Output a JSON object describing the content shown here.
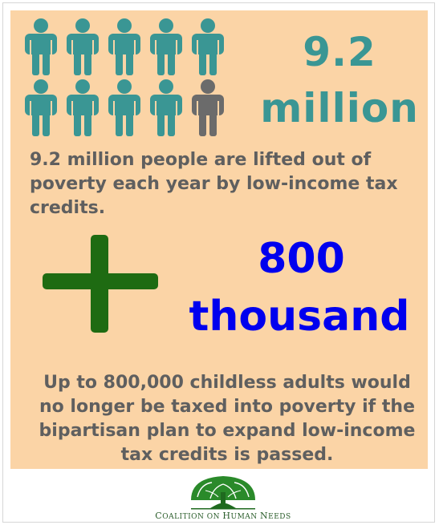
{
  "stat1": {
    "line1": "9.2",
    "line2": "million"
  },
  "pictogram": {
    "total": 10,
    "highlighted": 9,
    "colors": {
      "highlighted": "#3a9694",
      "other": "#6b6b6b"
    }
  },
  "text1": "9.2 million people are lifted out of poverty each year by low-income tax credits.",
  "plus_icon": "plus-icon",
  "plus_color": "#1e6b12",
  "stat2": {
    "line1": "800",
    "line2": "thousand",
    "color": "#0000ee"
  },
  "text2": "Up to 800,000 childless adults would no longer be taxed into poverty if the bipartisan  plan to expand low-income tax credits is passed.",
  "logo": {
    "text": "Coalition on Human Needs",
    "icon": "tree-icon",
    "color": "#2a8a2a"
  },
  "background": "#fbd4a6"
}
